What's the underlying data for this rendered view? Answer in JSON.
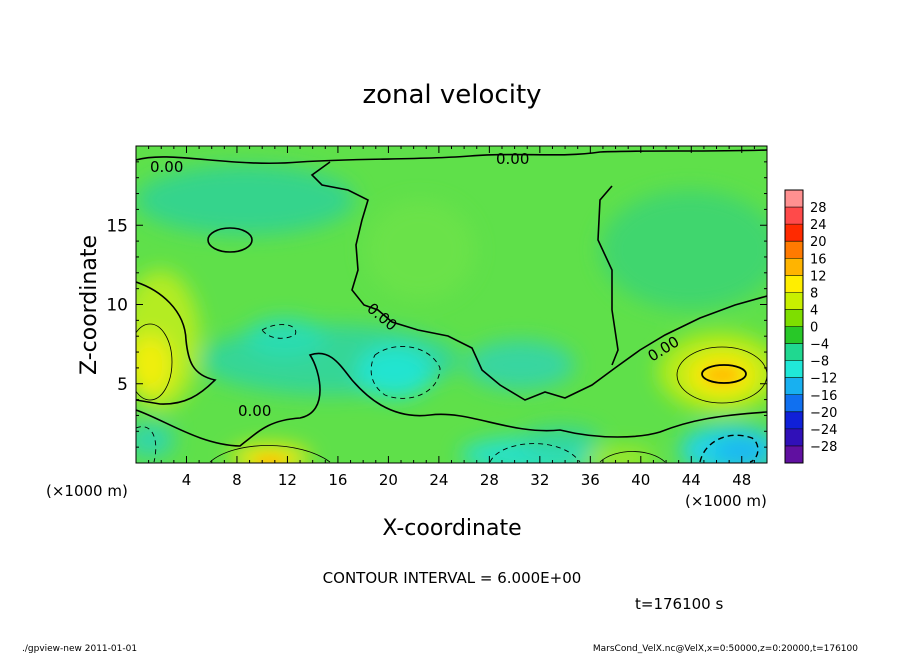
{
  "chart_data": {
    "type": "heatmap",
    "title": "zonal velocity",
    "xlabel": "X-coordinate",
    "ylabel": "Z-coordinate",
    "x_unit_label": "(×1000 m)",
    "y_unit_label": "(×1000 m)",
    "xlim": [
      0,
      50
    ],
    "ylim": [
      0,
      20
    ],
    "x_ticks": [
      4,
      8,
      12,
      16,
      20,
      24,
      28,
      32,
      36,
      40,
      44,
      48
    ],
    "y_ticks": [
      5,
      10,
      15
    ],
    "colorbar": {
      "labels": [
        "28",
        "24",
        "20",
        "16",
        "12",
        "8",
        "4",
        "0",
        "−4",
        "−8",
        "−12",
        "−16",
        "−20",
        "−24",
        "−28"
      ],
      "colors": [
        "#ff9090",
        "#ff4a4a",
        "#ff2a00",
        "#ff7a00",
        "#ffb400",
        "#ffee00",
        "#c8f000",
        "#7ede00",
        "#28c828",
        "#20d890",
        "#20e8d8",
        "#18b0f0",
        "#1070f0",
        "#1020d8",
        "#3010b8",
        "#6010a0"
      ]
    },
    "contour_label": "0.00",
    "contour_interval_text": "CONTOUR INTERVAL = 6.000E+00",
    "time_text": "t=176100 s"
  },
  "footer": {
    "left": "./gpview-new   2011-01-01",
    "right": "MarsCond_VelX.nc@VelX,x=0:50000,z=0:20000,t=176100"
  }
}
